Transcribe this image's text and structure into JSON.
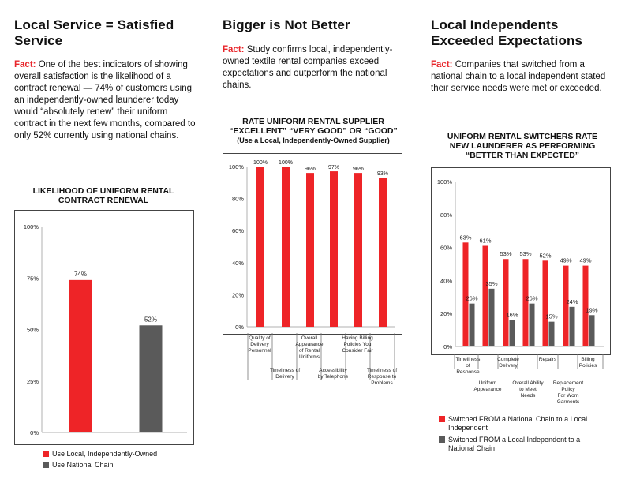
{
  "colors": {
    "accent": "#e8262b",
    "local": "#ee2427",
    "national": "#5a5a5a",
    "grid": "#b0b0b0"
  },
  "col1": {
    "heading": [
      "Local Service = Satisfied",
      "Service"
    ],
    "fact_label": "Fact:",
    "fact_text": "One of the best indicators of showing overall satisfaction is the likelihood of a contract renewal — 74% of customers using an independently-owned launderer today would “absolutely renew” their uniform contract in the next few months, compared to only 52% currently using national chains."
  },
  "col2": {
    "heading": "Bigger is Not Better",
    "fact_label": "Fact:",
    "fact_text": "Study confirms local, independently-owned textile rental companies exceed expectations and outperform the national chains."
  },
  "col3": {
    "heading": [
      "Local Independents",
      "Exceeded Expectations"
    ],
    "fact_label": "Fact:",
    "fact_text": "Companies that switched from a national chain to a local independent stated their service needs were met or exceeded."
  },
  "chart_data": [
    {
      "type": "bar",
      "title": [
        "LIKELIHOOD OF UNIFORM RENTAL",
        "CONTRACT RENEWAL"
      ],
      "categories": [
        "Use Local, Independently-Owned",
        "Use National Chain"
      ],
      "values": [
        74,
        52
      ],
      "value_labels": [
        "74%",
        "52%"
      ],
      "ylim": [
        0,
        100
      ],
      "yticks": [
        "0%",
        "25%",
        "50%",
        "75%",
        "100%"
      ],
      "ytick_values": [
        0,
        25,
        50,
        75,
        100
      ],
      "legend": [
        "Use Local, Independently-Owned",
        "Use National Chain"
      ],
      "legend_placement": "bottom"
    },
    {
      "type": "bar",
      "title": [
        "RATE UNIFORM RENTAL SUPPLIER",
        "“EXCELLENT” “VERY GOOD” OR “GOOD”"
      ],
      "subtitle": "(Use a Local, Independently-Owned Supplier)",
      "categories": [
        [
          "Quality of",
          "Delivery",
          "Personnel"
        ],
        [
          "Timeliness of",
          "Delivery"
        ],
        [
          "Overall",
          "Appearance",
          "of Rental",
          "Uniforms"
        ],
        [
          "Accessibility",
          "by Telephone"
        ],
        [
          "Having Billing",
          "Policies You",
          "Consider Fair"
        ],
        [
          "Timeliness of",
          "Response to",
          "Problems"
        ]
      ],
      "values": [
        100,
        100,
        96,
        97,
        96,
        93
      ],
      "value_labels": [
        "100%",
        "100%",
        "96%",
        "97%",
        "96%",
        "93%"
      ],
      "ylim": [
        0,
        100
      ],
      "yticks": [
        "0%",
        "20%",
        "40%",
        "60%",
        "80%",
        "100%"
      ],
      "ytick_values": [
        0,
        20,
        40,
        60,
        80,
        100
      ]
    },
    {
      "type": "bar",
      "title": [
        "UNIFORM RENTAL SWITCHERS RATE",
        "NEW LAUNDERER AS PERFORMING",
        "“BETTER THAN EXPECTED”"
      ],
      "categories": [
        [
          "Timeliness",
          "of",
          "Response"
        ],
        [
          "Uniform",
          "Appearance"
        ],
        [
          "Complete",
          "Delivery"
        ],
        [
          "Overall Ability",
          "to Meet",
          "Needs"
        ],
        [
          "Repairs"
        ],
        [
          "Replacement",
          "Policy",
          "For Worn",
          "Garments"
        ],
        [
          "Billing",
          "Policies"
        ]
      ],
      "series": [
        {
          "name": "Switched FROM a National Chain to a Local Independent",
          "values": [
            63,
            61,
            53,
            53,
            52,
            49,
            49
          ],
          "labels": [
            "63%",
            "61%",
            "53%",
            "53%",
            "52%",
            "49%",
            "49%"
          ]
        },
        {
          "name": "Switched FROM a Local Independent to a National Chain",
          "values": [
            26,
            35,
            16,
            26,
            15,
            24,
            19
          ],
          "labels": [
            "26%",
            "35%",
            "16%",
            "26%",
            "15%",
            "24%",
            "19%"
          ]
        }
      ],
      "ylim": [
        0,
        100
      ],
      "yticks": [
        "0%",
        "20%",
        "40%",
        "60%",
        "80%",
        "100%"
      ],
      "ytick_values": [
        0,
        20,
        40,
        60,
        80,
        100
      ],
      "legend": [
        "Switched FROM a National Chain to a Local Independent",
        "Switched FROM a Local Independent to a National Chain"
      ],
      "legend_placement": "bottom"
    }
  ]
}
